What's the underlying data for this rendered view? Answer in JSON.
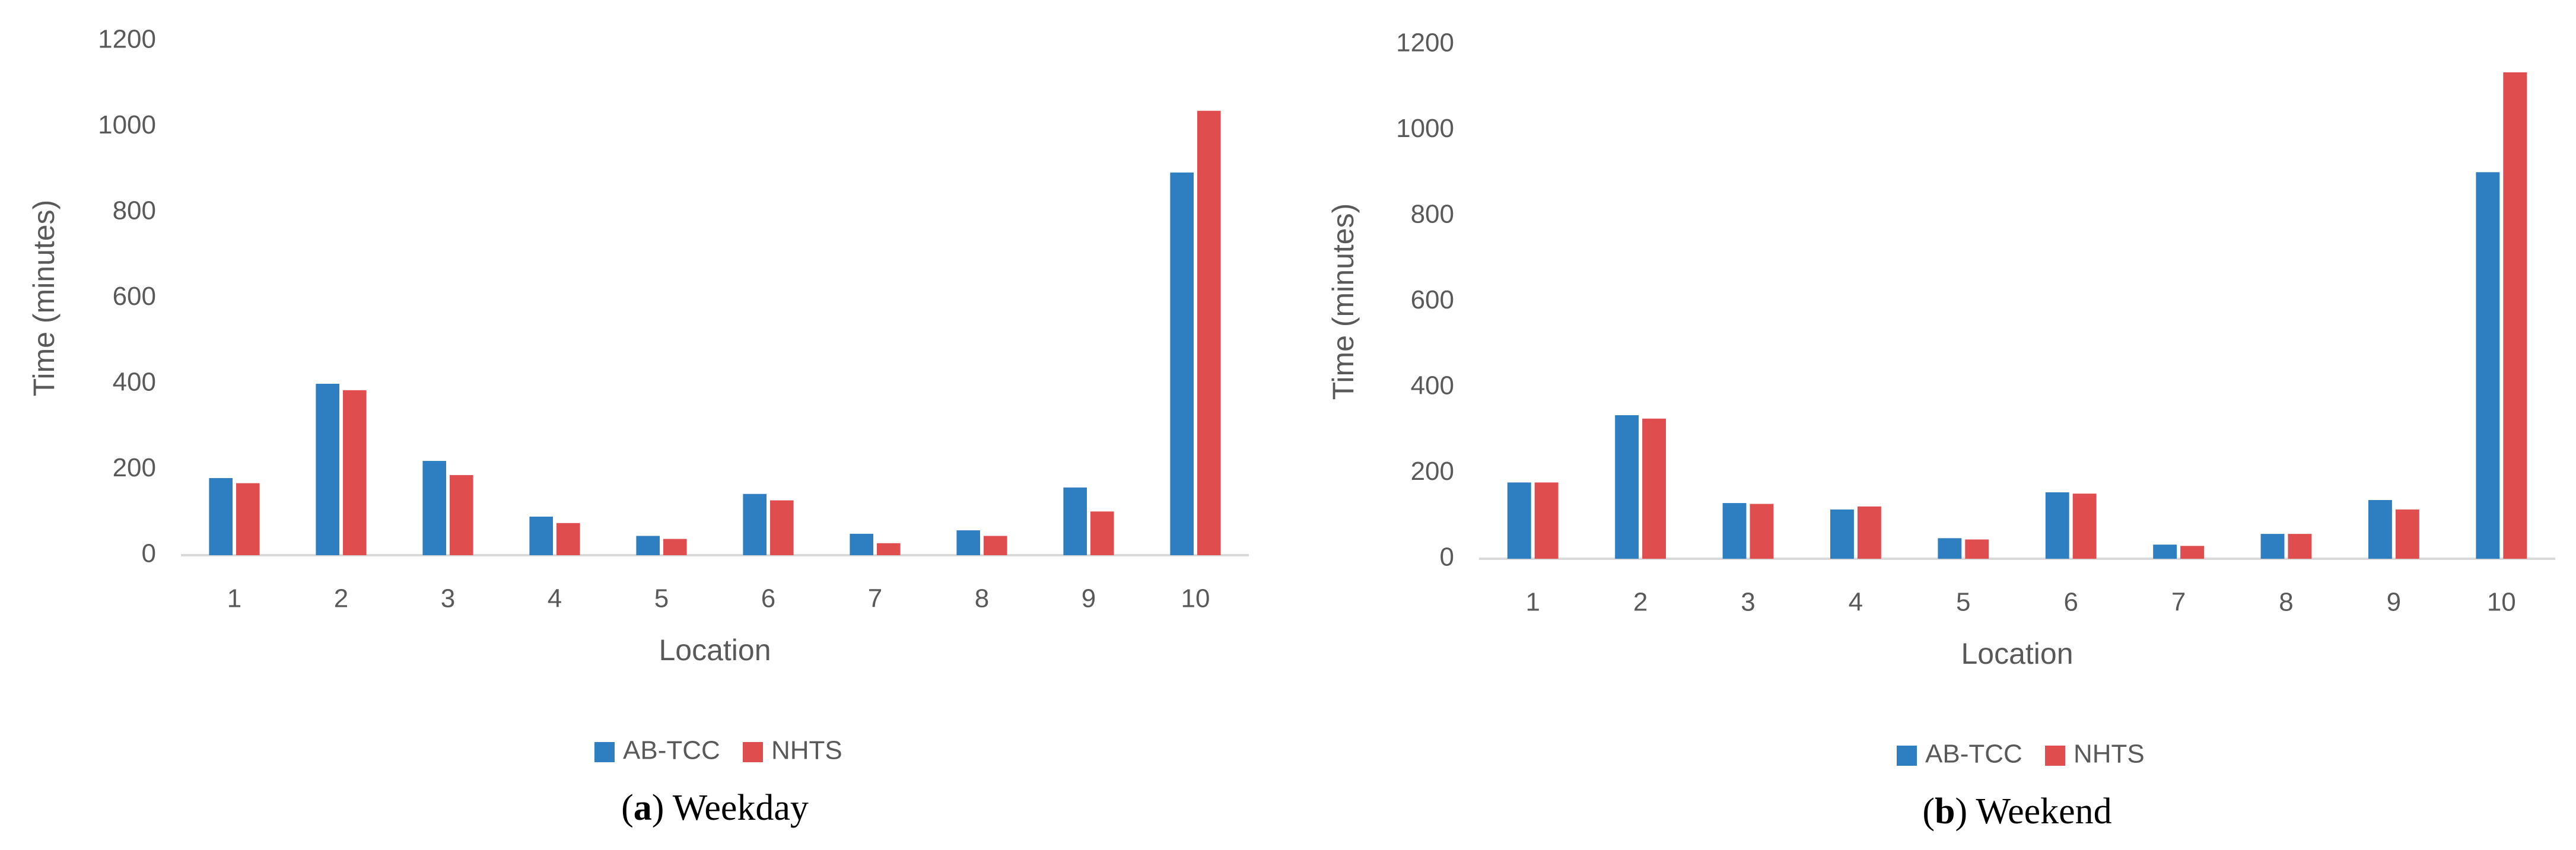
{
  "chart_data": [
    {
      "type": "bar",
      "caption": [
        "(",
        "a",
        ") Weekday"
      ],
      "xlabel": "Location",
      "ylabel": "Time (minutes)",
      "categories": [
        "1",
        "2",
        "3",
        "4",
        "5",
        "6",
        "7",
        "8",
        "9",
        "10"
      ],
      "series": [
        {
          "name": "AB-TCC",
          "color": "#2e7fc1",
          "values": [
            180,
            400,
            220,
            90,
            45,
            143,
            50,
            58,
            158,
            893
          ]
        },
        {
          "name": "NHTS",
          "color": "#e04d4f",
          "values": [
            168,
            385,
            187,
            75,
            38,
            128,
            28,
            45,
            102,
            1037
          ]
        }
      ],
      "ylim": [
        0,
        1200
      ],
      "yticks": [
        0,
        200,
        400,
        600,
        800,
        1000,
        1200
      ],
      "grid": false,
      "legend": "bottom"
    },
    {
      "type": "bar",
      "caption": [
        "(",
        "b",
        ") Weekend"
      ],
      "xlabel": "Location",
      "ylabel": "Time (minutes)",
      "categories": [
        "1",
        "2",
        "3",
        "4",
        "5",
        "6",
        "7",
        "8",
        "9",
        "10"
      ],
      "series": [
        {
          "name": "AB-TCC",
          "color": "#2e7fc1",
          "values": [
            178,
            335,
            130,
            115,
            48,
            155,
            33,
            58,
            137,
            902
          ]
        },
        {
          "name": "NHTS",
          "color": "#e04d4f",
          "values": [
            178,
            327,
            128,
            122,
            45,
            152,
            30,
            58,
            115,
            1135
          ]
        }
      ],
      "ylim": [
        0,
        1200
      ],
      "yticks": [
        0,
        200,
        400,
        600,
        800,
        1000,
        1200
      ],
      "grid": false,
      "legend": "bottom"
    }
  ]
}
